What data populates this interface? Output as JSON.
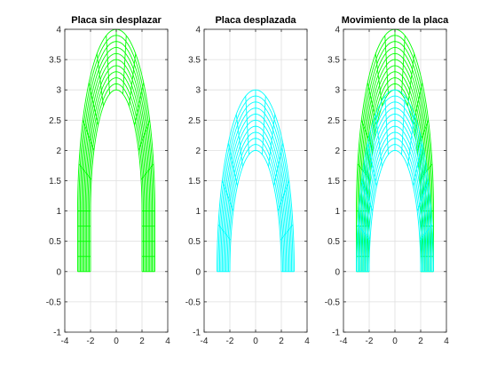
{
  "chart_data": [
    {
      "type": "line",
      "title": "Placa sin desplazar",
      "xlim": [
        -4,
        4
      ],
      "ylim": [
        -1,
        4
      ],
      "xticks": [
        "-4",
        "-2",
        "0",
        "2",
        "4"
      ],
      "yticks": [
        "-1",
        "-0.5",
        "0",
        "0.5",
        "1",
        "1.5",
        "2",
        "2.5",
        "3",
        "3.5",
        "4"
      ],
      "grid": true,
      "series": [
        {
          "color": "#00ff00",
          "base_y": 1,
          "inner_radius": 2,
          "outer_radius": 3
        }
      ]
    },
    {
      "type": "line",
      "title": "Placa desplazada",
      "xlim": [
        -4,
        4
      ],
      "ylim": [
        -1,
        4
      ],
      "xticks": [
        "-4",
        "-2",
        "0",
        "2",
        "4"
      ],
      "yticks": [
        "-1",
        "-0.5",
        "0",
        "0.5",
        "1",
        "1.5",
        "2",
        "2.5",
        "3",
        "3.5",
        "4"
      ],
      "grid": true,
      "series": [
        {
          "color": "#00ffff",
          "base_y": 0,
          "inner_radius": 2,
          "outer_radius": 3
        }
      ]
    },
    {
      "type": "line",
      "title": "Movimiento de la placa",
      "xlim": [
        -4,
        4
      ],
      "ylim": [
        -1,
        4
      ],
      "xticks": [
        "-4",
        "-2",
        "0",
        "2",
        "4"
      ],
      "yticks": [
        "-1",
        "-0.5",
        "0",
        "0.5",
        "1",
        "1.5",
        "2",
        "2.5",
        "3",
        "3.5",
        "4"
      ],
      "grid": true,
      "series": [
        {
          "color": "#00ff00",
          "base_y": 1,
          "inner_radius": 2,
          "outer_radius": 3
        },
        {
          "color": "#00ffff",
          "base_y": 0,
          "inner_radius": 2,
          "outer_radius": 3
        }
      ]
    }
  ]
}
